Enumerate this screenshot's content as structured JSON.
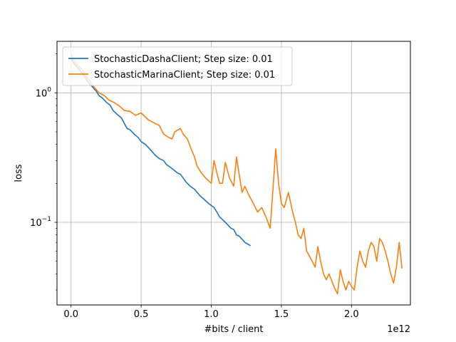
{
  "chart_data": {
    "type": "line",
    "xlabel": "#bits / client",
    "ylabel": "loss",
    "x_offset_label": "1e12",
    "yscale": "log",
    "xlim": [
      -0.1,
      2.42
    ],
    "ylim": [
      0.023,
      2.5
    ],
    "grid": true,
    "legend_position": "top-left",
    "x_ticks": [
      {
        "value": 0.0,
        "label": "0.0"
      },
      {
        "value": 0.5,
        "label": "0.5"
      },
      {
        "value": 1.0,
        "label": "1.0"
      },
      {
        "value": 1.5,
        "label": "1.5"
      },
      {
        "value": 2.0,
        "label": "2.0"
      }
    ],
    "y_ticks": [
      {
        "value": 1.0,
        "label": "10",
        "exp": "0"
      },
      {
        "value": 0.1,
        "label": "10",
        "exp": "−1"
      }
    ],
    "series": [
      {
        "name": "StochasticDashaClient; Step size: 0.01",
        "color": "#1f77b4",
        "x": [
          0.0,
          0.02,
          0.05,
          0.08,
          0.1,
          0.12,
          0.15,
          0.18,
          0.2,
          0.22,
          0.25,
          0.28,
          0.3,
          0.33,
          0.36,
          0.38,
          0.4,
          0.42,
          0.45,
          0.48,
          0.5,
          0.53,
          0.56,
          0.58,
          0.6,
          0.63,
          0.66,
          0.68,
          0.7,
          0.73,
          0.76,
          0.78,
          0.8,
          0.82,
          0.85,
          0.88,
          0.9,
          0.92,
          0.95,
          0.98,
          1.0,
          1.02,
          1.04,
          1.06,
          1.08,
          1.1,
          1.12,
          1.14,
          1.16,
          1.18,
          1.2,
          1.22,
          1.24,
          1.26,
          1.28
        ],
        "y": [
          1.85,
          1.7,
          1.55,
          1.42,
          1.32,
          1.22,
          1.12,
          1.03,
          0.95,
          0.92,
          0.85,
          0.8,
          0.73,
          0.68,
          0.64,
          0.58,
          0.53,
          0.52,
          0.48,
          0.45,
          0.42,
          0.4,
          0.37,
          0.35,
          0.33,
          0.31,
          0.3,
          0.28,
          0.27,
          0.255,
          0.24,
          0.235,
          0.22,
          0.205,
          0.19,
          0.18,
          0.17,
          0.16,
          0.15,
          0.14,
          0.135,
          0.13,
          0.12,
          0.11,
          0.105,
          0.1,
          0.095,
          0.09,
          0.088,
          0.08,
          0.078,
          0.074,
          0.07,
          0.068,
          0.066
        ]
      },
      {
        "name": "StochasticMarinaClient; Step size: 0.01",
        "color": "#ff7f0e",
        "x": [
          0.0,
          0.02,
          0.05,
          0.08,
          0.1,
          0.13,
          0.16,
          0.2,
          0.24,
          0.27,
          0.3,
          0.34,
          0.38,
          0.42,
          0.46,
          0.5,
          0.55,
          0.6,
          0.63,
          0.66,
          0.7,
          0.72,
          0.74,
          0.78,
          0.8,
          0.83,
          0.86,
          0.88,
          0.9,
          0.93,
          0.96,
          1.0,
          1.02,
          1.04,
          1.06,
          1.08,
          1.1,
          1.13,
          1.16,
          1.18,
          1.2,
          1.22,
          1.24,
          1.27,
          1.3,
          1.33,
          1.36,
          1.39,
          1.42,
          1.44,
          1.46,
          1.48,
          1.5,
          1.52,
          1.55,
          1.58,
          1.6,
          1.62,
          1.64,
          1.66,
          1.68,
          1.7,
          1.72,
          1.74,
          1.76,
          1.78,
          1.8,
          1.82,
          1.84,
          1.86,
          1.88,
          1.9,
          1.92,
          1.94,
          1.96,
          1.98,
          2.0,
          2.02,
          2.04,
          2.06,
          2.08,
          2.1,
          2.12,
          2.14,
          2.16,
          2.18,
          2.2,
          2.22,
          2.24,
          2.26,
          2.28,
          2.3,
          2.32,
          2.34,
          2.36
        ],
        "y": [
          2.0,
          1.8,
          1.62,
          1.5,
          1.38,
          1.25,
          1.12,
          1.0,
          0.95,
          0.88,
          0.85,
          0.8,
          0.73,
          0.72,
          0.67,
          0.7,
          0.62,
          0.58,
          0.56,
          0.48,
          0.45,
          0.44,
          0.5,
          0.53,
          0.48,
          0.44,
          0.36,
          0.32,
          0.27,
          0.24,
          0.22,
          0.2,
          0.3,
          0.24,
          0.2,
          0.2,
          0.29,
          0.22,
          0.19,
          0.32,
          0.23,
          0.17,
          0.19,
          0.16,
          0.14,
          0.12,
          0.13,
          0.11,
          0.09,
          0.18,
          0.37,
          0.2,
          0.14,
          0.13,
          0.17,
          0.12,
          0.1,
          0.08,
          0.075,
          0.09,
          0.06,
          0.055,
          0.05,
          0.045,
          0.065,
          0.05,
          0.04,
          0.036,
          0.04,
          0.035,
          0.031,
          0.028,
          0.043,
          0.035,
          0.03,
          0.035,
          0.032,
          0.03,
          0.045,
          0.06,
          0.05,
          0.045,
          0.06,
          0.07,
          0.065,
          0.05,
          0.075,
          0.07,
          0.06,
          0.05,
          0.04,
          0.034,
          0.045,
          0.07,
          0.044
        ]
      }
    ]
  }
}
